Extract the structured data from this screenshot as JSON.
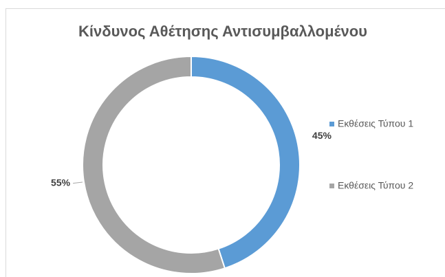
{
  "chart_data": {
    "type": "donut",
    "title": "Κίνδυνος Αθέτησης Αντισυμβαλλομένου",
    "categories": [
      "Εκθέσεις Τύπου 1",
      "Εκθέσεις Τύπου 2"
    ],
    "values": [
      45,
      55
    ],
    "value_labels": [
      "45%",
      "55%"
    ],
    "colors": [
      "#5b9bd5",
      "#a5a5a5"
    ],
    "legend": "right"
  }
}
